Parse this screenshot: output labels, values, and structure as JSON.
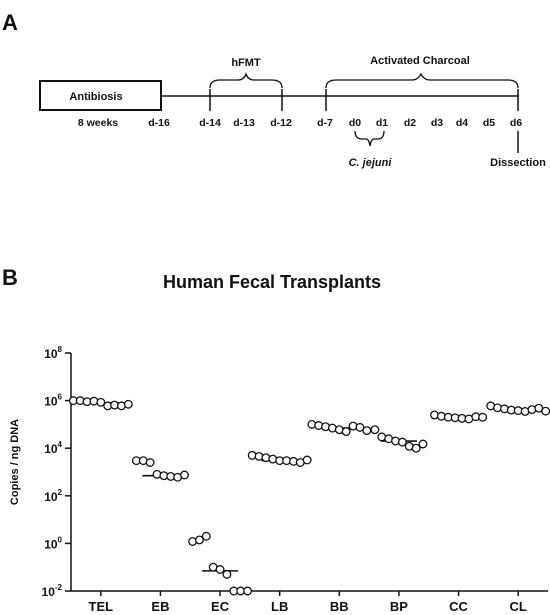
{
  "panel_a": {
    "label": "A",
    "box_label": "Antibiosis",
    "duration_label": "8 weeks",
    "bracket_hfmt": "hFMT",
    "bracket_charcoal": "Activated Charcoal",
    "bracket_cjejuni": "C. jejuni",
    "dissection": "Dissection",
    "days": [
      "d-16",
      "d-14",
      "d-13",
      "d-12",
      "d-7",
      "d0",
      "d1",
      "d2",
      "d3",
      "d4",
      "d5",
      "d6"
    ]
  },
  "panel_b": {
    "label": "B",
    "title": "Human Fecal Transplants",
    "ylabel": "Copies / ng DNA"
  },
  "chart_data": {
    "type": "scatter",
    "title": "Human Fecal Transplants",
    "xlabel": "",
    "ylabel": "Copies / ng DNA",
    "yscale": "log",
    "ylim": [
      0.01,
      100000000
    ],
    "yticks": [
      {
        "value": 0.01,
        "base": "10",
        "exp": "-2"
      },
      {
        "value": 1,
        "base": "10",
        "exp": "0"
      },
      {
        "value": 100,
        "base": "10",
        "exp": "2"
      },
      {
        "value": 10000,
        "base": "10",
        "exp": "4"
      },
      {
        "value": 1000000,
        "base": "10",
        "exp": "6"
      },
      {
        "value": 100000000,
        "base": "10",
        "exp": "8"
      }
    ],
    "categories": [
      "TEL",
      "EB",
      "EC",
      "LB",
      "BB",
      "BP",
      "CC",
      "CL"
    ],
    "medians": [
      800000,
      700,
      0.07,
      3000,
      70000,
      20000,
      200000,
      400000
    ],
    "points": [
      [
        1000000,
        1000000,
        900000,
        950000,
        850000,
        600000,
        650000,
        600000,
        700000
      ],
      [
        3000,
        3000,
        2500,
        800,
        700,
        650,
        600,
        750
      ],
      [
        1.2,
        1.4,
        2,
        0.1,
        0.08,
        0.05,
        0.01,
        0.01,
        0.01
      ],
      [
        5000,
        4500,
        4000,
        3500,
        3000,
        3000,
        2800,
        2500,
        3200
      ],
      [
        100000,
        90000,
        80000,
        70000,
        60000,
        50000,
        85000,
        75000,
        55000
      ],
      [
        60000,
        30000,
        25000,
        20000,
        18000,
        12000,
        10000,
        15000
      ],
      [
        250000,
        220000,
        200000,
        190000,
        180000,
        170000,
        210000,
        200000
      ],
      [
        600000,
        500000,
        450000,
        400000,
        380000,
        350000,
        420000,
        480000,
        360000
      ]
    ]
  }
}
